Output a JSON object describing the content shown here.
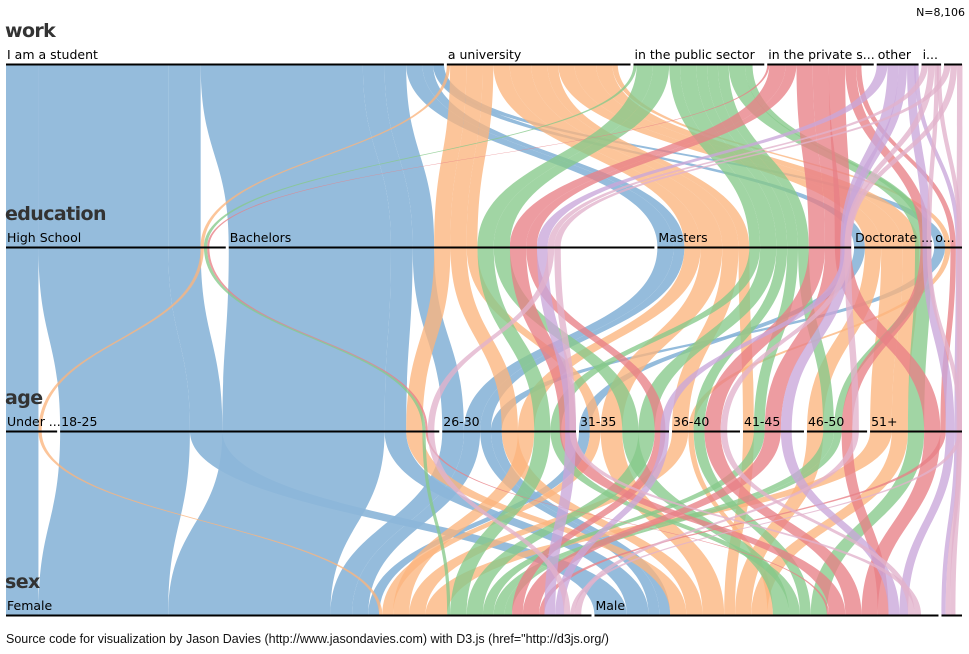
{
  "total_label": "N=8,106",
  "footer": "Source code for visualization by Jason Davies (http://www.jasondavies.com) with D3.js (href=\"http://d3js.org/)",
  "palette": {
    "student": "#8cb6d9",
    "university": "#fbb57e",
    "public": "#86c98a",
    "private": "#e88086",
    "other": "#c9a6da",
    "misc": "#e2b2cc"
  },
  "dimensions": [
    {
      "key": "work",
      "title": "work",
      "categories": [
        {
          "key": "student",
          "label": "I am a student",
          "share": 0.4668
        },
        {
          "key": "university",
          "label": "a university",
          "share": 0.1958
        },
        {
          "key": "public",
          "label": "in the public sector",
          "share": 0.1394
        },
        {
          "key": "private",
          "label": "in the private s...",
          "share": 0.1135
        },
        {
          "key": "other",
          "label": "other",
          "share": 0.0446
        },
        {
          "key": "i",
          "label": "i...",
          "share": 0.0208
        },
        {
          "key": "w7",
          "label": "",
          "share": 0.0191
        }
      ]
    },
    {
      "key": "education",
      "title": "education",
      "categories": [
        {
          "key": "highschool",
          "label": "High School",
          "share": 0.2328
        },
        {
          "key": "bachelors",
          "label": "Bachelors",
          "share": 0.4509
        },
        {
          "key": "masters",
          "label": "Masters",
          "share": 0.2052
        },
        {
          "key": "doctorate",
          "label": "Doctorate ...",
          "share": 0.0817
        },
        {
          "key": "o",
          "label": "o...",
          "share": 0.0294
        }
      ]
    },
    {
      "key": "age",
      "title": "age",
      "categories": [
        {
          "key": "under",
          "label": "Under ...",
          "share": 0.0547
        },
        {
          "key": "a1825",
          "label": "18-25",
          "share": 0.4055
        },
        {
          "key": "a2630",
          "label": "26-30",
          "share": 0.143
        },
        {
          "key": "a3135",
          "label": "31-35",
          "share": 0.0963
        },
        {
          "key": "a3640",
          "label": "36-40",
          "share": 0.0727
        },
        {
          "key": "a4145",
          "label": "41-45",
          "share": 0.0652
        },
        {
          "key": "a4650",
          "label": "46-50",
          "share": 0.0643
        },
        {
          "key": "a51",
          "label": "51+",
          "share": 0.0983
        }
      ]
    },
    {
      "key": "sex",
      "title": "sex",
      "categories": [
        {
          "key": "female",
          "label": "Female",
          "share": 0.6163
        },
        {
          "key": "male",
          "label": "Male",
          "share": 0.3621
        },
        {
          "key": "s3",
          "label": "",
          "share": 0.0216
        }
      ]
    }
  ]
}
